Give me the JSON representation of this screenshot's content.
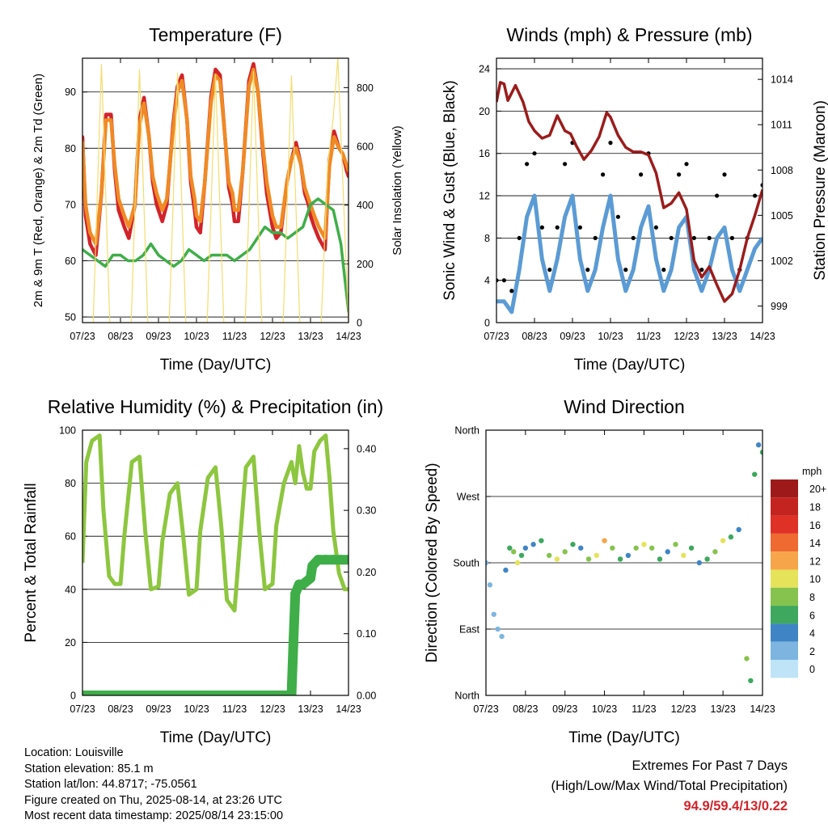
{
  "chart_data": [
    {
      "id": "temperature",
      "type": "line",
      "title": "Temperature (F)",
      "xlabel": "Time (Day/UTC)",
      "ylabel": "2m & 9m T (Red, Orange) & 2m Td (Green)",
      "ylabel_right": "Solar Insolation (Yellow)",
      "x_ticks": [
        "07/23",
        "08/23",
        "09/23",
        "10/23",
        "11/23",
        "12/23",
        "13/23",
        "14/23"
      ],
      "ylim": [
        49,
        96
      ],
      "y_ticks": [
        50,
        60,
        70,
        80,
        90
      ],
      "ylim_right": [
        0,
        900
      ],
      "y_ticks_right": [
        0,
        200,
        400,
        600,
        800
      ],
      "colors": {
        "t2m": "#d2232a",
        "t9m": "#f08a24",
        "td": "#3fae49",
        "solar": "#f5dc6e"
      },
      "series": [
        {
          "name": "2m T",
          "key": "t2m",
          "x": [
            0,
            0.08,
            0.2,
            0.35,
            0.5,
            0.62,
            0.75,
            0.85,
            0.95,
            1,
            1.1,
            1.22,
            1.38,
            1.5,
            1.62,
            1.75,
            1.85,
            1.95,
            2,
            2.1,
            2.22,
            2.38,
            2.5,
            2.62,
            2.75,
            2.85,
            2.95,
            3,
            3.1,
            3.22,
            3.38,
            3.5,
            3.62,
            3.75,
            3.85,
            3.95,
            4,
            4.1,
            4.22,
            4.38,
            4.5,
            4.62,
            4.75,
            4.85,
            4.95,
            5,
            5.1,
            5.22,
            5.38,
            5.5,
            5.62,
            5.75,
            5.85,
            5.95,
            6,
            6.1,
            6.22,
            6.38,
            6.5,
            6.62,
            6.75,
            6.85,
            6.95,
            7
          ],
          "y": [
            82,
            68,
            63,
            61,
            72,
            86,
            86,
            76,
            69,
            68,
            66,
            64,
            70,
            85,
            89,
            82,
            74,
            70,
            69,
            67,
            70,
            84,
            91,
            93,
            85,
            74,
            69,
            66,
            65,
            74,
            89,
            94,
            93,
            82,
            73,
            70,
            67,
            67,
            76,
            92,
            95,
            90,
            79,
            72,
            68,
            66,
            64,
            65,
            74,
            78,
            81,
            77,
            72,
            70,
            68,
            66,
            64,
            62,
            78,
            83,
            80,
            79,
            76,
            75
          ]
        },
        {
          "name": "9m T",
          "key": "t9m",
          "x": [
            0,
            0.08,
            0.2,
            0.35,
            0.5,
            0.62,
            0.75,
            0.85,
            0.95,
            1,
            1.1,
            1.22,
            1.38,
            1.5,
            1.62,
            1.75,
            1.85,
            1.95,
            2,
            2.1,
            2.22,
            2.38,
            2.5,
            2.62,
            2.75,
            2.85,
            2.95,
            3,
            3.1,
            3.22,
            3.38,
            3.5,
            3.62,
            3.75,
            3.85,
            3.95,
            4,
            4.1,
            4.22,
            4.38,
            4.5,
            4.62,
            4.75,
            4.85,
            4.95,
            5,
            5.1,
            5.22,
            5.38,
            5.5,
            5.62,
            5.75,
            5.85,
            5.95,
            6,
            6.1,
            6.22,
            6.38,
            6.5,
            6.62,
            6.75,
            6.85,
            6.95,
            7
          ],
          "y": [
            81,
            70,
            65,
            63,
            72,
            85,
            85,
            77,
            71,
            70,
            68,
            66,
            70,
            84,
            88,
            82,
            75,
            72,
            71,
            69,
            71,
            83,
            90,
            92,
            85,
            75,
            71,
            68,
            67,
            74,
            88,
            93,
            92,
            82,
            74,
            72,
            69,
            69,
            76,
            91,
            94,
            90,
            80,
            74,
            70,
            68,
            66,
            66,
            74,
            78,
            80,
            77,
            73,
            71,
            70,
            68,
            66,
            64,
            77,
            82,
            80,
            79,
            77,
            76
          ]
        },
        {
          "name": "2m Td",
          "key": "td",
          "x": [
            0,
            0.2,
            0.4,
            0.6,
            0.8,
            1,
            1.2,
            1.4,
            1.6,
            1.8,
            2,
            2.2,
            2.4,
            2.6,
            2.8,
            3,
            3.2,
            3.4,
            3.6,
            3.8,
            4,
            4.2,
            4.4,
            4.6,
            4.8,
            5,
            5.2,
            5.4,
            5.6,
            5.8,
            6,
            6.2,
            6.4,
            6.6,
            6.8,
            6.9,
            7
          ],
          "y": [
            62,
            61,
            60,
            59,
            61,
            61,
            60,
            60,
            61,
            63,
            61,
            60,
            59,
            60,
            62,
            61,
            60,
            61,
            61,
            61,
            60,
            61,
            62,
            64,
            66,
            65,
            65,
            64,
            65,
            66,
            70,
            71,
            70,
            69,
            63,
            57,
            51
          ]
        },
        {
          "name": "Solar Insolation",
          "key": "solar",
          "axis": "right",
          "x": [
            0,
            0.28,
            0.5,
            0.72,
            1,
            1.28,
            1.5,
            1.72,
            2,
            2.28,
            2.5,
            2.72,
            3,
            3.28,
            3.5,
            3.72,
            4,
            4.28,
            4.5,
            4.72,
            5,
            5.28,
            5.5,
            5.72,
            6,
            6.28,
            6.45,
            6.6,
            6.72,
            7,
            7.28
          ],
          "y": [
            0,
            0,
            880,
            0,
            0,
            0,
            860,
            0,
            0,
            0,
            850,
            0,
            0,
            0,
            845,
            0,
            0,
            0,
            855,
            0,
            0,
            0,
            840,
            0,
            0,
            0,
            530,
            700,
            900,
            0,
            0
          ]
        }
      ]
    },
    {
      "id": "winds",
      "type": "line",
      "title": "Winds (mph) & Pressure (mb)",
      "xlabel": "Time (Day/UTC)",
      "ylabel": "Sonic Wind & Gust (Blue, Black)",
      "ylabel_right": "Station Pressure (Maroon)",
      "x_ticks": [
        "07/23",
        "08/23",
        "09/23",
        "10/23",
        "11/23",
        "12/23",
        "13/23",
        "14/23"
      ],
      "ylim": [
        0,
        25
      ],
      "y_ticks": [
        0,
        4,
        8,
        12,
        16,
        20,
        24
      ],
      "ylim_right": [
        997.9,
        1015.4
      ],
      "y_ticks_right": [
        999,
        1002,
        1005,
        1008,
        1011,
        1014
      ],
      "colors": {
        "wind": "#5b9bd5",
        "gust": "#000000",
        "pressure": "#9b1c1c"
      },
      "series": [
        {
          "name": "Sonic Wind",
          "key": "wind",
          "x": [
            0,
            0.2,
            0.4,
            0.6,
            0.8,
            1,
            1.2,
            1.4,
            1.6,
            1.8,
            2,
            2.2,
            2.4,
            2.6,
            2.8,
            3,
            3.2,
            3.4,
            3.6,
            3.8,
            4,
            4.2,
            4.4,
            4.6,
            4.8,
            5,
            5.2,
            5.4,
            5.6,
            5.8,
            6,
            6.2,
            6.4,
            6.6,
            6.8,
            7
          ],
          "y": [
            2,
            2,
            1,
            5,
            10,
            12,
            6,
            3,
            6,
            10,
            12,
            6,
            3,
            5,
            9,
            12,
            6,
            3,
            5,
            9,
            11,
            6,
            3,
            5,
            9,
            10,
            5,
            3,
            5,
            8,
            9,
            5,
            3,
            5,
            7,
            8
          ]
        },
        {
          "name": "Gust",
          "key": "gust",
          "style": "scatter",
          "x": [
            0,
            0.2,
            0.4,
            0.6,
            0.8,
            1,
            1.2,
            1.4,
            1.6,
            1.8,
            2,
            2.2,
            2.4,
            2.6,
            2.8,
            3,
            3.2,
            3.4,
            3.6,
            3.8,
            4,
            4.2,
            4.4,
            4.6,
            4.8,
            5,
            5.2,
            5.4,
            5.6,
            5.8,
            6,
            6.2,
            6.4,
            6.6,
            6.8,
            7
          ],
          "y": [
            4,
            4,
            3,
            8,
            15,
            16,
            9,
            5,
            9,
            15,
            17,
            9,
            5,
            8,
            14,
            17,
            10,
            5,
            8,
            14,
            16,
            9,
            5,
            8,
            14,
            15,
            8,
            5,
            8,
            12,
            14,
            8,
            5,
            8,
            12,
            13
          ]
        },
        {
          "name": "Station Pressure",
          "key": "pressure",
          "axis": "right",
          "x": [
            0,
            0.1,
            0.2,
            0.3,
            0.5,
            0.7,
            0.85,
            1,
            1.2,
            1.4,
            1.6,
            1.8,
            1.95,
            2.1,
            2.3,
            2.5,
            2.7,
            2.9,
            3,
            3.2,
            3.4,
            3.6,
            3.8,
            4,
            4.2,
            4.4,
            4.6,
            4.8,
            5,
            5.2,
            5.4,
            5.6,
            5.8,
            6,
            6.2,
            6.4,
            6.6,
            6.8,
            7
          ],
          "y": [
            1012.5,
            1013.8,
            1013.7,
            1012.6,
            1013.6,
            1012.5,
            1011.2,
            1010.6,
            1010.1,
            1010.3,
            1011.6,
            1010.6,
            1010.4,
            1009.6,
            1008.7,
            1009.3,
            1010.2,
            1011.8,
            1011.5,
            1010.3,
            1009.5,
            1009.2,
            1009.2,
            1009.0,
            1007.8,
            1005.5,
            1005.8,
            1006.5,
            1005.4,
            1002.0,
            1000.9,
            1001.6,
            1000.4,
            999.3,
            999.8,
            1001.4,
            1003.5,
            1005.0,
            1006.7
          ]
        }
      ]
    },
    {
      "id": "humidity",
      "type": "line",
      "title": "Relative Humidity (%) & Precipitation (in)",
      "xlabel": "Time (Day/UTC)",
      "ylabel": "Percent & Total Rainfall",
      "x_ticks": [
        "07/23",
        "08/23",
        "09/23",
        "10/23",
        "11/23",
        "12/23",
        "13/23",
        "14/23"
      ],
      "ylim": [
        0,
        100
      ],
      "y_ticks": [
        0,
        20,
        40,
        60,
        80,
        100
      ],
      "ylim_right": [
        0,
        0.43
      ],
      "y_ticks_right": [
        "0.00",
        "0.10",
        "0.20",
        "0.30",
        "0.40"
      ],
      "colors": {
        "rh": "#8dc63f",
        "precip": "#3fae49"
      },
      "series": [
        {
          "name": "Relative Humidity",
          "key": "rh",
          "x": [
            0,
            0.1,
            0.25,
            0.45,
            0.55,
            0.7,
            0.85,
            1,
            1.1,
            1.3,
            1.5,
            1.65,
            1.8,
            2,
            2.1,
            2.3,
            2.5,
            2.65,
            2.8,
            3,
            3.1,
            3.3,
            3.5,
            3.65,
            3.8,
            4,
            4.1,
            4.3,
            4.5,
            4.65,
            4.8,
            5,
            5.1,
            5.3,
            5.5,
            5.6,
            5.7,
            5.8,
            5.9,
            6,
            6.1,
            6.25,
            6.4,
            6.5,
            6.6,
            6.75,
            6.9,
            7
          ],
          "y": [
            50,
            88,
            96,
            98,
            70,
            45,
            42,
            42,
            60,
            88,
            90,
            62,
            40,
            41,
            58,
            76,
            80,
            60,
            38,
            40,
            62,
            82,
            86,
            64,
            36,
            32,
            50,
            86,
            90,
            62,
            40,
            42,
            64,
            80,
            88,
            80,
            94,
            84,
            78,
            78,
            92,
            96,
            98,
            82,
            62,
            46,
            40,
            40
          ]
        },
        {
          "name": "Total Rainfall",
          "key": "precip",
          "axis": "right",
          "style": "markers",
          "x": [
            0,
            1,
            2,
            3,
            4,
            5,
            5.5,
            5.55,
            5.6,
            5.7,
            5.8,
            6.0,
            6.05,
            6.2,
            6.4,
            6.6,
            6.8,
            7
          ],
          "y": [
            0,
            0,
            0,
            0,
            0,
            0,
            0,
            0.084,
            0.165,
            0.18,
            0.18,
            0.19,
            0.21,
            0.22,
            0.22,
            0.22,
            0.22,
            0.22
          ]
        }
      ]
    },
    {
      "id": "direction",
      "type": "scatter",
      "title": "Wind Direction",
      "xlabel": "Time (Day/UTC)",
      "ylabel": "Direction (Colored By Speed)",
      "x_ticks": [
        "07/23",
        "08/23",
        "09/23",
        "10/23",
        "11/23",
        "12/23",
        "13/23",
        "14/23"
      ],
      "y_ticks": [
        "North",
        "East",
        "South",
        "West",
        "North"
      ],
      "ylim": [
        0,
        360
      ],
      "legend": {
        "title": "mph",
        "labels": [
          "20+",
          "18",
          "16",
          "14",
          "12",
          "10",
          "8",
          "6",
          "4",
          "2",
          "0"
        ],
        "colors": [
          "#9e1a1a",
          "#c4241f",
          "#e03127",
          "#ee6a30",
          "#f7a54a",
          "#e5e35a",
          "#86c34e",
          "#3ea85e",
          "#3f85c6",
          "#7db5e0",
          "#bfe3f7"
        ],
        "placement": "right"
      },
      "x": [
        0,
        0.1,
        0.2,
        0.3,
        0.4,
        0.5,
        0.6,
        0.7,
        0.8,
        0.9,
        1,
        1.2,
        1.4,
        1.6,
        1.8,
        2,
        2.2,
        2.4,
        2.6,
        2.8,
        3,
        3.2,
        3.4,
        3.6,
        3.8,
        4,
        4.2,
        4.4,
        4.6,
        4.8,
        5,
        5.2,
        5.4,
        5.6,
        5.8,
        6,
        6.2,
        6.4,
        6.6,
        6.7,
        6.8,
        6.9,
        7
      ],
      "y": [
        180,
        150,
        110,
        90,
        80,
        170,
        200,
        195,
        180,
        190,
        200,
        205,
        210,
        190,
        185,
        195,
        205,
        200,
        185,
        190,
        210,
        200,
        185,
        190,
        200,
        205,
        200,
        185,
        195,
        205,
        190,
        200,
        180,
        185,
        195,
        210,
        215,
        225,
        50,
        20,
        300,
        340,
        330
      ],
      "speed": [
        2,
        2,
        1,
        1,
        1,
        4,
        6,
        8,
        10,
        6,
        4,
        4,
        6,
        8,
        10,
        8,
        6,
        4,
        8,
        10,
        12,
        8,
        6,
        4,
        8,
        10,
        8,
        6,
        4,
        8,
        10,
        6,
        4,
        6,
        8,
        10,
        6,
        4,
        8,
        6,
        6,
        4,
        6
      ]
    }
  ],
  "footer": {
    "location": "Location: Louisville",
    "elevation": "Station elevation: 85.1 m",
    "latlon": "Station lat/lon: 44.8717; -75.0561",
    "created": "Figure created on Thu, 2025-08-14, at 23:26 UTC",
    "recent": "Most recent data timestamp: 2025/08/14 23:15:00"
  },
  "extremes": {
    "title": "Extremes For Past 7 Days",
    "subtitle": "(High/Low/Max Wind/Total Precipitation)",
    "values": "94.9/59.4/13/0.22"
  }
}
